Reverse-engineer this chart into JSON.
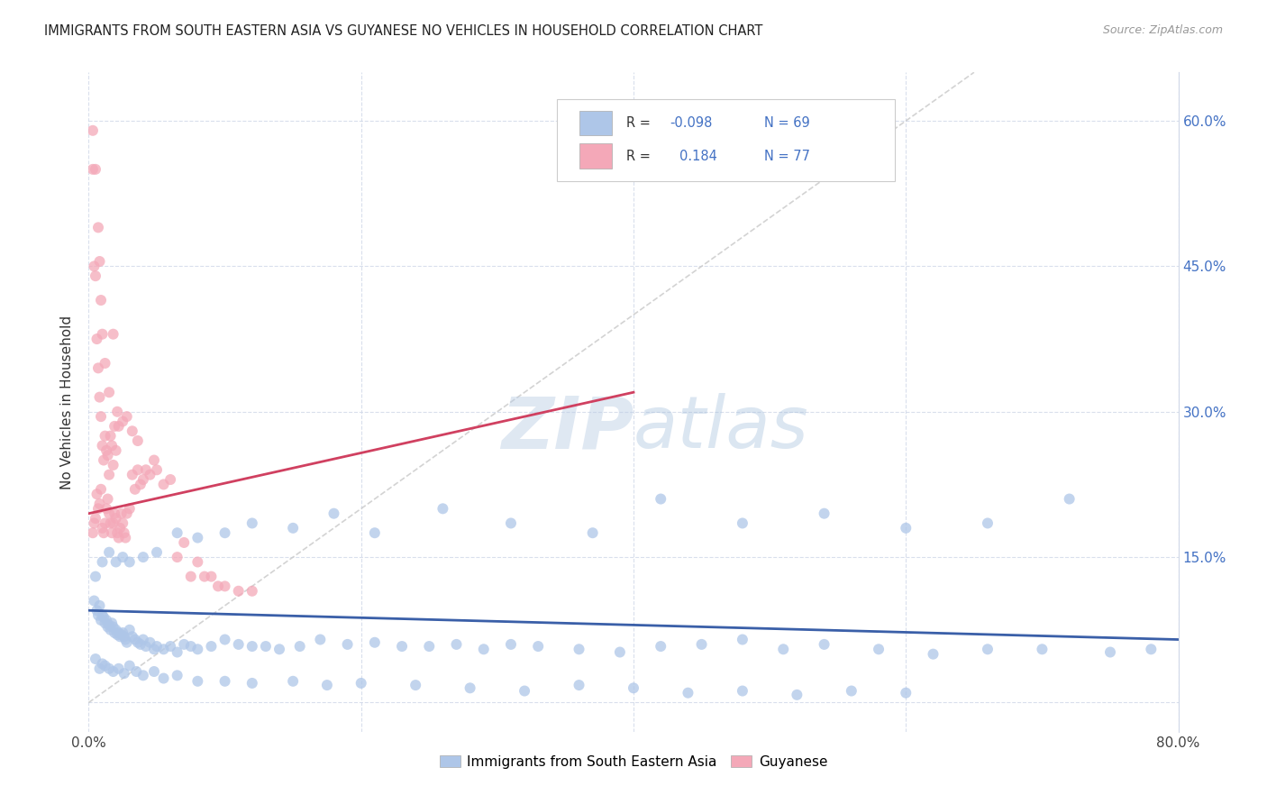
{
  "title": "IMMIGRANTS FROM SOUTH EASTERN ASIA VS GUYANESE NO VEHICLES IN HOUSEHOLD CORRELATION CHART",
  "source": "Source: ZipAtlas.com",
  "ylabel": "No Vehicles in Household",
  "x_min": 0.0,
  "x_max": 0.8,
  "y_min": -0.03,
  "y_max": 0.65,
  "blue_R": "-0.098",
  "blue_N": "69",
  "pink_R": "0.184",
  "pink_N": "77",
  "legend_labels": [
    "Immigrants from South Eastern Asia",
    "Guyanese"
  ],
  "blue_color": "#aec6e8",
  "pink_color": "#f4a8b8",
  "blue_line_color": "#3a5fa8",
  "pink_line_color": "#d04060",
  "diagonal_color": "#c8c8c8",
  "watermark_zip": "ZIP",
  "watermark_atlas": "atlas",
  "blue_scatter_x": [
    0.004,
    0.006,
    0.007,
    0.008,
    0.009,
    0.01,
    0.011,
    0.012,
    0.013,
    0.014,
    0.015,
    0.016,
    0.017,
    0.018,
    0.019,
    0.02,
    0.021,
    0.022,
    0.023,
    0.024,
    0.025,
    0.026,
    0.027,
    0.028,
    0.03,
    0.032,
    0.034,
    0.036,
    0.038,
    0.04,
    0.042,
    0.045,
    0.048,
    0.05,
    0.055,
    0.06,
    0.065,
    0.07,
    0.075,
    0.08,
    0.09,
    0.1,
    0.11,
    0.12,
    0.13,
    0.14,
    0.155,
    0.17,
    0.19,
    0.21,
    0.23,
    0.25,
    0.27,
    0.29,
    0.31,
    0.33,
    0.36,
    0.39,
    0.42,
    0.45,
    0.48,
    0.51,
    0.54,
    0.58,
    0.62,
    0.66,
    0.7,
    0.75,
    0.78
  ],
  "blue_scatter_y": [
    0.105,
    0.095,
    0.09,
    0.1,
    0.085,
    0.09,
    0.088,
    0.082,
    0.085,
    0.078,
    0.08,
    0.075,
    0.082,
    0.078,
    0.072,
    0.075,
    0.07,
    0.072,
    0.068,
    0.07,
    0.072,
    0.068,
    0.065,
    0.062,
    0.075,
    0.068,
    0.065,
    0.062,
    0.06,
    0.065,
    0.058,
    0.062,
    0.055,
    0.058,
    0.055,
    0.058,
    0.052,
    0.06,
    0.058,
    0.055,
    0.058,
    0.065,
    0.06,
    0.058,
    0.058,
    0.055,
    0.058,
    0.065,
    0.06,
    0.062,
    0.058,
    0.058,
    0.06,
    0.055,
    0.06,
    0.058,
    0.055,
    0.052,
    0.058,
    0.06,
    0.065,
    0.055,
    0.06,
    0.055,
    0.05,
    0.055,
    0.055,
    0.052,
    0.055
  ],
  "blue_scatter_x2": [
    0.005,
    0.008,
    0.01,
    0.012,
    0.015,
    0.018,
    0.022,
    0.026,
    0.03,
    0.035,
    0.04,
    0.048,
    0.055,
    0.065,
    0.08,
    0.1,
    0.12,
    0.15,
    0.175,
    0.2,
    0.24,
    0.28,
    0.32,
    0.36,
    0.4,
    0.44,
    0.48,
    0.52,
    0.56,
    0.6
  ],
  "blue_scatter_y2": [
    0.045,
    0.035,
    0.04,
    0.038,
    0.035,
    0.032,
    0.035,
    0.03,
    0.038,
    0.032,
    0.028,
    0.032,
    0.025,
    0.028,
    0.022,
    0.022,
    0.02,
    0.022,
    0.018,
    0.02,
    0.018,
    0.015,
    0.012,
    0.018,
    0.015,
    0.01,
    0.012,
    0.008,
    0.012,
    0.01
  ],
  "blue_scatter_x3": [
    0.005,
    0.01,
    0.015,
    0.02,
    0.025,
    0.03,
    0.04,
    0.05,
    0.065,
    0.08,
    0.1,
    0.12,
    0.15,
    0.18,
    0.21,
    0.26,
    0.31,
    0.37,
    0.42,
    0.48,
    0.54,
    0.6,
    0.66,
    0.72
  ],
  "blue_scatter_y3": [
    0.13,
    0.145,
    0.155,
    0.145,
    0.15,
    0.145,
    0.15,
    0.155,
    0.175,
    0.17,
    0.175,
    0.185,
    0.18,
    0.195,
    0.175,
    0.2,
    0.185,
    0.175,
    0.21,
    0.185,
    0.195,
    0.18,
    0.185,
    0.21
  ],
  "pink_scatter_x": [
    0.003,
    0.004,
    0.005,
    0.006,
    0.007,
    0.008,
    0.009,
    0.01,
    0.011,
    0.012,
    0.013,
    0.014,
    0.015,
    0.016,
    0.017,
    0.018,
    0.019,
    0.02,
    0.021,
    0.022,
    0.023,
    0.024,
    0.025,
    0.026,
    0.027,
    0.028,
    0.03,
    0.032,
    0.034,
    0.036,
    0.038,
    0.04,
    0.042,
    0.045,
    0.048,
    0.05,
    0.055,
    0.06,
    0.065,
    0.07,
    0.075,
    0.08,
    0.085,
    0.09,
    0.095,
    0.1,
    0.11,
    0.12
  ],
  "pink_scatter_y": [
    0.175,
    0.185,
    0.19,
    0.215,
    0.2,
    0.205,
    0.22,
    0.18,
    0.175,
    0.185,
    0.2,
    0.21,
    0.195,
    0.185,
    0.175,
    0.185,
    0.195,
    0.19,
    0.175,
    0.17,
    0.18,
    0.195,
    0.185,
    0.175,
    0.17,
    0.195,
    0.2,
    0.235,
    0.22,
    0.24,
    0.225,
    0.23,
    0.24,
    0.235,
    0.25,
    0.24,
    0.225,
    0.23,
    0.15,
    0.165,
    0.13,
    0.145,
    0.13,
    0.13,
    0.12,
    0.12,
    0.115,
    0.115
  ],
  "pink_scatter_x2": [
    0.003,
    0.004,
    0.005,
    0.006,
    0.007,
    0.008,
    0.009,
    0.01,
    0.011,
    0.012,
    0.013,
    0.014,
    0.015,
    0.016,
    0.017,
    0.018,
    0.019,
    0.02,
    0.021,
    0.022,
    0.025,
    0.028,
    0.032,
    0.036
  ],
  "pink_scatter_y2": [
    0.55,
    0.45,
    0.44,
    0.375,
    0.345,
    0.315,
    0.295,
    0.265,
    0.25,
    0.275,
    0.26,
    0.255,
    0.235,
    0.275,
    0.265,
    0.245,
    0.285,
    0.26,
    0.3,
    0.285,
    0.29,
    0.295,
    0.28,
    0.27
  ],
  "pink_scatter_x3": [
    0.003,
    0.005,
    0.007,
    0.008,
    0.009,
    0.01,
    0.012,
    0.015,
    0.018
  ],
  "pink_scatter_y3": [
    0.59,
    0.55,
    0.49,
    0.455,
    0.415,
    0.38,
    0.35,
    0.32,
    0.38
  ],
  "blue_trend_x": [
    0.0,
    0.8
  ],
  "blue_trend_y": [
    0.095,
    0.065
  ],
  "pink_trend_x": [
    0.0,
    0.4
  ],
  "pink_trend_y": [
    0.195,
    0.32
  ]
}
